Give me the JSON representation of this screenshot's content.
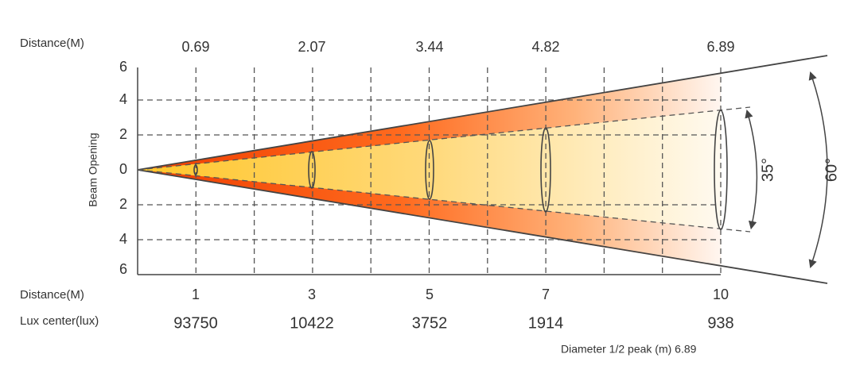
{
  "header": {
    "distance_label": "Distance(M)",
    "top_distances": [
      "0.69",
      "2.07",
      "3.44",
      "4.82",
      "6.89"
    ]
  },
  "y_axis": {
    "label": "Beam Opening",
    "ticks": [
      "6",
      "4",
      "2",
      "0",
      "2",
      "4",
      "6"
    ]
  },
  "footer": {
    "distance_label": "Distance(M)",
    "distances": [
      "1",
      "3",
      "5",
      "7",
      "10"
    ],
    "lux_label": "Lux center(lux)",
    "lux_values": [
      "93750",
      "10422",
      "3752",
      "1914",
      "938"
    ],
    "diameter_note": "Diameter 1/2 peak (m) 6.89"
  },
  "angles": {
    "inner": "35°",
    "outer": "60°"
  }
}
